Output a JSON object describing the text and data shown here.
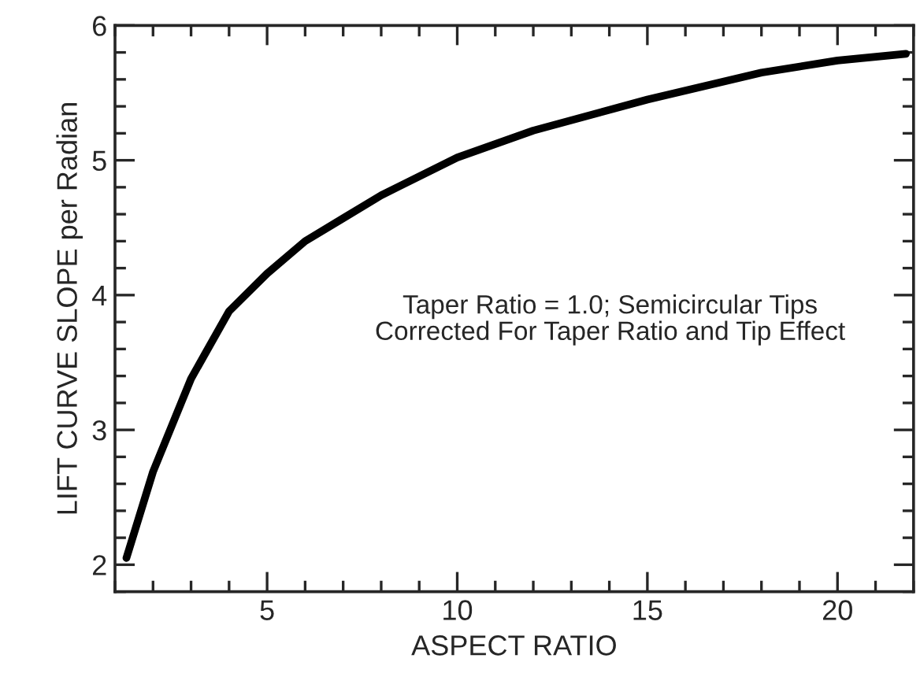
{
  "chart_data": {
    "type": "line",
    "xlabel": "ASPECT RATIO",
    "ylabel": "LIFT CURVE SLOPE per Radian",
    "x": [
      1.3,
      2,
      3,
      4,
      5,
      6,
      7,
      8,
      10,
      12,
      15,
      18,
      20,
      21.8
    ],
    "series": [
      {
        "color": "#000000",
        "values": [
          2.05,
          2.69,
          3.38,
          3.88,
          4.16,
          4.4,
          4.57,
          4.74,
          5.02,
          5.22,
          5.45,
          5.65,
          5.74,
          5.79
        ]
      }
    ],
    "xlim": [
      1,
      22
    ],
    "xticks": [
      5,
      10,
      15,
      20
    ],
    "ylim": [
      1.8,
      6
    ],
    "yticks": [
      2,
      3,
      4,
      5,
      6
    ],
    "grid": false,
    "legend": false,
    "marker": "none",
    "line_style": "solid",
    "annotations": [
      "Taper Ratio = 1.0; Semicircular Tips\nCorrected For Taper Ratio and Tip Effect"
    ]
  }
}
